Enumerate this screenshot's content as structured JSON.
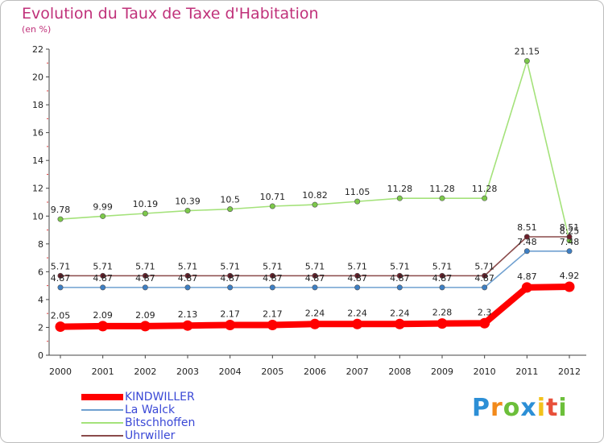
{
  "title": "Evolution du Taux de Taxe d'Habitation",
  "subtitle": "(en %)",
  "brand": {
    "letters": [
      "P",
      "r",
      "o",
      "x",
      "i",
      "t",
      "i"
    ],
    "colors": [
      "#2c8fd6",
      "#f28a1b",
      "#6cbf3a",
      "#2c8fd6",
      "#f2c21b",
      "#e8503a",
      "#6cbf3a"
    ]
  },
  "chart_data": {
    "type": "line",
    "title": "Evolution du Taux de Taxe d'Habitation",
    "ylabel": "(en %)",
    "x": [
      "2000",
      "2001",
      "2002",
      "2003",
      "2004",
      "2005",
      "2006",
      "2007",
      "2008",
      "2009",
      "2010",
      "2011",
      "2012"
    ],
    "yticks": [
      "0",
      "2",
      "4",
      "6",
      "8",
      "10",
      "12",
      "14",
      "16",
      "18",
      "20",
      "22"
    ],
    "ylim": [
      0,
      22
    ],
    "grid": false,
    "legend_position": "bottom-left",
    "series": [
      {
        "name": "KINDWILLER",
        "color": "#ff0000",
        "marker_color": "#ff0000",
        "values": [
          2.05,
          2.09,
          2.09,
          2.13,
          2.17,
          2.17,
          2.24,
          2.24,
          2.24,
          2.28,
          2.3,
          4.87,
          4.92
        ],
        "labels": [
          "2.05",
          "2.09",
          "2.09",
          "2.13",
          "2.17",
          "2.17",
          "2.24",
          "2.24",
          "2.24",
          "2.28",
          "2.3",
          "4.87",
          "4.92"
        ]
      },
      {
        "name": "La Walck",
        "color": "#6fa0d0",
        "marker_color": "#3d7fc4",
        "values": [
          4.87,
          4.87,
          4.87,
          4.87,
          4.87,
          4.87,
          4.87,
          4.87,
          4.87,
          4.87,
          4.87,
          7.48,
          7.48
        ],
        "labels": [
          "4.87",
          "4.87",
          "4.87",
          "4.87",
          "4.87",
          "4.87",
          "4.87",
          "4.87",
          "4.87",
          "4.87",
          "4.87",
          "7.48",
          "7.48"
        ]
      },
      {
        "name": "Bitschhoffen",
        "color": "#a4e27a",
        "marker_color": "#7cc94a",
        "values": [
          9.78,
          9.99,
          10.19,
          10.39,
          10.5,
          10.71,
          10.82,
          11.05,
          11.28,
          11.28,
          11.28,
          21.15,
          8.25
        ],
        "labels": [
          "9.78",
          "9.99",
          "10.19",
          "10.39",
          "10.5",
          "10.71",
          "10.82",
          "11.05",
          "11.28",
          "11.28",
          "11.28",
          "21.15",
          "8.25"
        ]
      },
      {
        "name": "Uhrwiller",
        "color": "#8a4a4a",
        "marker_color": "#6b1f2a",
        "values": [
          5.71,
          5.71,
          5.71,
          5.71,
          5.71,
          5.71,
          5.71,
          5.71,
          5.71,
          5.71,
          5.71,
          8.51,
          8.51
        ],
        "labels": [
          "5.71",
          "5.71",
          "5.71",
          "5.71",
          "5.71",
          "5.71",
          "5.71",
          "5.71",
          "5.71",
          "5.71",
          "5.71",
          "8.51",
          "8.51"
        ]
      }
    ]
  }
}
